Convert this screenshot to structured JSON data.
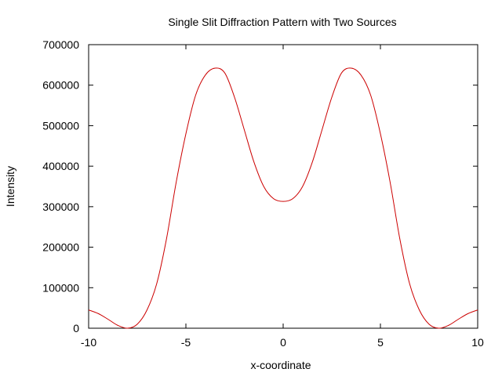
{
  "chart_data": {
    "type": "line",
    "title": "Single Slit Diffraction Pattern with Two Sources",
    "xlabel": "x-coordinate",
    "ylabel": "Intensity",
    "xlim": [
      -10,
      10
    ],
    "ylim": [
      0,
      700000
    ],
    "xticks": [
      -10,
      -5,
      0,
      5,
      10
    ],
    "xtick_labels": [
      "-10",
      "-5",
      "0",
      "5",
      "10"
    ],
    "yticks": [
      0,
      100000,
      200000,
      300000,
      400000,
      500000,
      600000,
      700000
    ],
    "ytick_labels": [
      "0",
      "100000",
      "200000",
      "300000",
      "400000",
      "500000",
      "600000",
      "700000"
    ],
    "grid": false,
    "series": [
      {
        "color": "#cc0000",
        "x": [
          -10,
          -9.5,
          -9,
          -8.5,
          -8,
          -7.5,
          -7,
          -6.5,
          -6,
          -5.5,
          -5,
          -4.5,
          -4,
          -3.5,
          -3,
          -2.5,
          -2,
          -1.5,
          -1,
          -0.5,
          0,
          0.5,
          1,
          1.5,
          2,
          2.5,
          3,
          3.5,
          4,
          4.5,
          5,
          5.5,
          6,
          6.5,
          7,
          7.5,
          8,
          8.5,
          9,
          9.5,
          10
        ],
        "y": [
          45000,
          36000,
          22000,
          7000,
          0,
          10000,
          45000,
          110000,
          220000,
          360000,
          480000,
          575000,
          625000,
          642000,
          630000,
          570000,
          490000,
          410000,
          350000,
          320000,
          313000,
          320000,
          350000,
          410000,
          490000,
          570000,
          630000,
          642000,
          625000,
          575000,
          480000,
          360000,
          220000,
          110000,
          45000,
          10000,
          0,
          7000,
          22000,
          36000,
          45000
        ]
      }
    ]
  }
}
